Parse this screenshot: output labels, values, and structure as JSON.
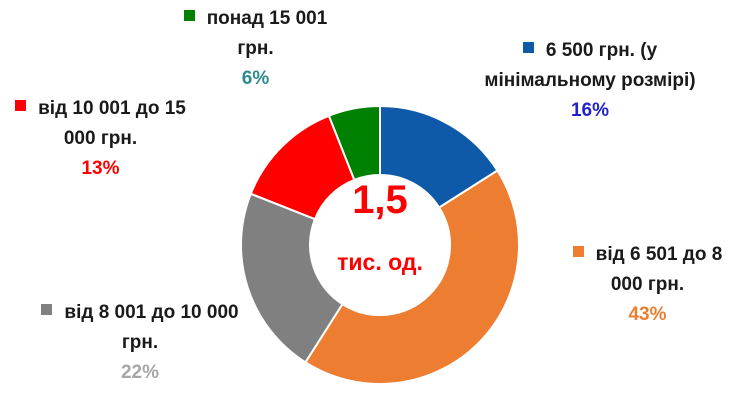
{
  "chart_data": {
    "type": "donut",
    "categories": [
      "6 500 грн. (у мінімальному розмірі)",
      "від 6 501 до 8 000 грн.",
      "від 8 001 до 10 000 грн.",
      "від 10 001 до 15 000 грн.",
      "понад 15 001 грн."
    ],
    "values": [
      16,
      43,
      22,
      13,
      6
    ],
    "value_labels": [
      "16%",
      "43%",
      "22%",
      "13%",
      "6%"
    ],
    "colors": [
      "#0f5aa8",
      "#ed7d31",
      "#808080",
      "#ff0000",
      "#008000"
    ],
    "label_colors": [
      "#2222cc",
      "#ed7d31",
      "#a6a6a6",
      "#ff0000",
      "#2e8b8b"
    ],
    "center_text": [
      "1,5",
      "тис. од."
    ]
  }
}
